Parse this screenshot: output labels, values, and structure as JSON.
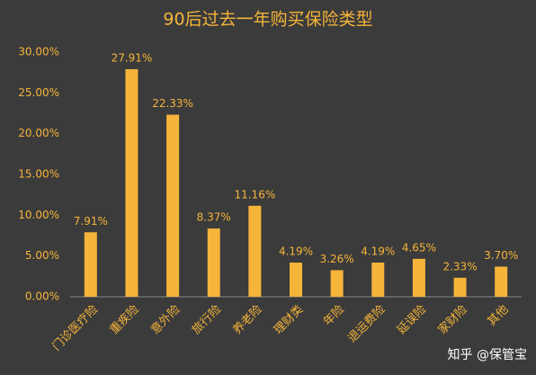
{
  "chart_data": {
    "type": "bar",
    "title": "90后过去一年购买保险类型",
    "categories": [
      "门诊医疗险",
      "重疾险",
      "意外险",
      "旅行险",
      "养老险",
      "理财类",
      "年险",
      "退运费险",
      "延误险",
      "家财险",
      "其他"
    ],
    "values": [
      7.91,
      27.91,
      22.33,
      8.37,
      11.16,
      4.19,
      3.26,
      4.19,
      4.65,
      2.33,
      3.7
    ],
    "value_labels": [
      "7.91%",
      "27.91%",
      "22.33%",
      "8.37%",
      "11.16%",
      "4.19%",
      "3.26%",
      "4.19%",
      "4.65%",
      "2.33%",
      "3.70%"
    ],
    "color": "#f5b43a",
    "ylim": [
      0,
      30
    ],
    "yticks": [
      {
        "value": 0,
        "label": "0.00%"
      },
      {
        "value": 5,
        "label": "5.00%"
      },
      {
        "value": 10,
        "label": "10.00%"
      },
      {
        "value": 15,
        "label": "15.00%"
      },
      {
        "value": 20,
        "label": "20.00%"
      },
      {
        "value": 25,
        "label": "25.00%"
      },
      {
        "value": 30,
        "label": "30.00%"
      }
    ],
    "grid": false,
    "watermark": "知乎 @保管宝"
  }
}
